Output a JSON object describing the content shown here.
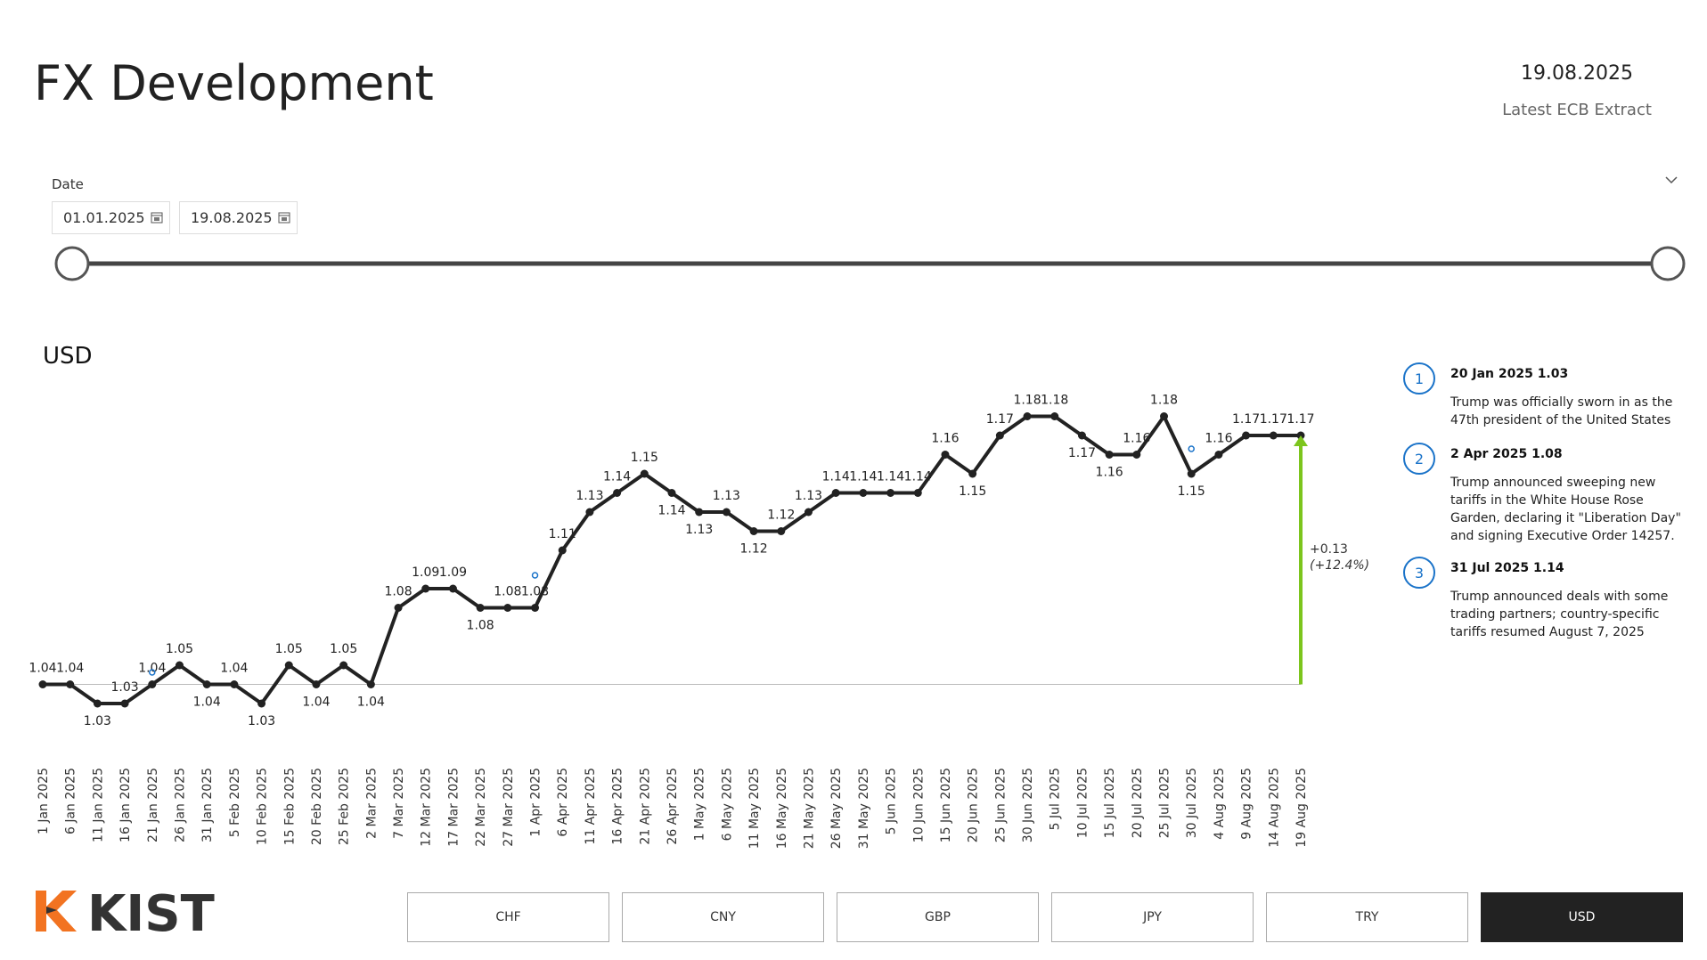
{
  "header": {
    "title": "FX Development",
    "date": "19.08.2025",
    "subtitle": "Latest ECB Extract"
  },
  "filter": {
    "label": "Date",
    "start": "01.01.2025",
    "end": "19.08.2025"
  },
  "chart_data": {
    "type": "line",
    "title": "USD",
    "color": "#222222",
    "categories": [
      "1 Jan 2025",
      "6 Jan 2025",
      "11 Jan 2025",
      "16 Jan 2025",
      "21 Jan 2025",
      "26 Jan 2025",
      "31 Jan 2025",
      "5 Feb 2025",
      "10 Feb 2025",
      "15 Feb 2025",
      "20 Feb 2025",
      "25 Feb 2025",
      "2 Mar 2025",
      "7 Mar 2025",
      "12 Mar 2025",
      "17 Mar 2025",
      "22 Mar 2025",
      "27 Mar 2025",
      "1 Apr 2025",
      "6 Apr 2025",
      "11 Apr 2025",
      "16 Apr 2025",
      "21 Apr 2025",
      "26 Apr 2025",
      "1 May 2025",
      "6 May 2025",
      "11 May 2025",
      "16 May 2025",
      "21 May 2025",
      "26 May 2025",
      "31 May 2025",
      "5 Jun 2025",
      "10 Jun 2025",
      "15 Jun 2025",
      "20 Jun 2025",
      "25 Jun 2025",
      "30 Jun 2025",
      "5 Jul 2025",
      "10 Jul 2025",
      "15 Jul 2025",
      "20 Jul 2025",
      "25 Jul 2025",
      "30 Jul 2025",
      "4 Aug 2025",
      "9 Aug 2025",
      "14 Aug 2025",
      "19 Aug 2025"
    ],
    "values": [
      1.04,
      1.04,
      1.03,
      1.03,
      1.04,
      1.05,
      1.04,
      1.04,
      1.03,
      1.05,
      1.04,
      1.05,
      1.04,
      1.08,
      1.09,
      1.09,
      1.08,
      1.08,
      1.08,
      1.11,
      1.13,
      1.14,
      1.15,
      1.14,
      1.13,
      1.13,
      1.12,
      1.12,
      1.13,
      1.14,
      1.14,
      1.14,
      1.14,
      1.16,
      1.15,
      1.17,
      1.18,
      1.18,
      1.17,
      1.16,
      1.16,
      1.18,
      1.15,
      1.16,
      1.17,
      1.17,
      1.17
    ],
    "ylim": [
      1.02,
      1.19
    ],
    "annotation": {
      "text": "+0.13",
      "subtext": "(+12.4%)",
      "color": "#7cc51d"
    }
  },
  "events": [
    {
      "number": "1",
      "title": "20 Jan 2025 1.03",
      "text": "Trump was officially sworn in as the 47th president of the United States"
    },
    {
      "number": "2",
      "title": "2 Apr 2025 1.08",
      "text": "Trump announced sweeping new tariffs in the White House Rose Garden, declaring it \"Liberation Day\" and signing Executive Order 14257."
    },
    {
      "number": "3",
      "title": "31 Jul 2025 1.14",
      "text": "Trump announced deals with some trading partners; country-specific tariffs resumed August 7, 2025"
    }
  ],
  "currencies": [
    {
      "label": "CHF",
      "selected": false
    },
    {
      "label": "CNY",
      "selected": false
    },
    {
      "label": "GBP",
      "selected": false
    },
    {
      "label": "JPY",
      "selected": false
    },
    {
      "label": "TRY",
      "selected": false
    },
    {
      "label": "USD",
      "selected": true
    }
  ],
  "logo": "KIST"
}
